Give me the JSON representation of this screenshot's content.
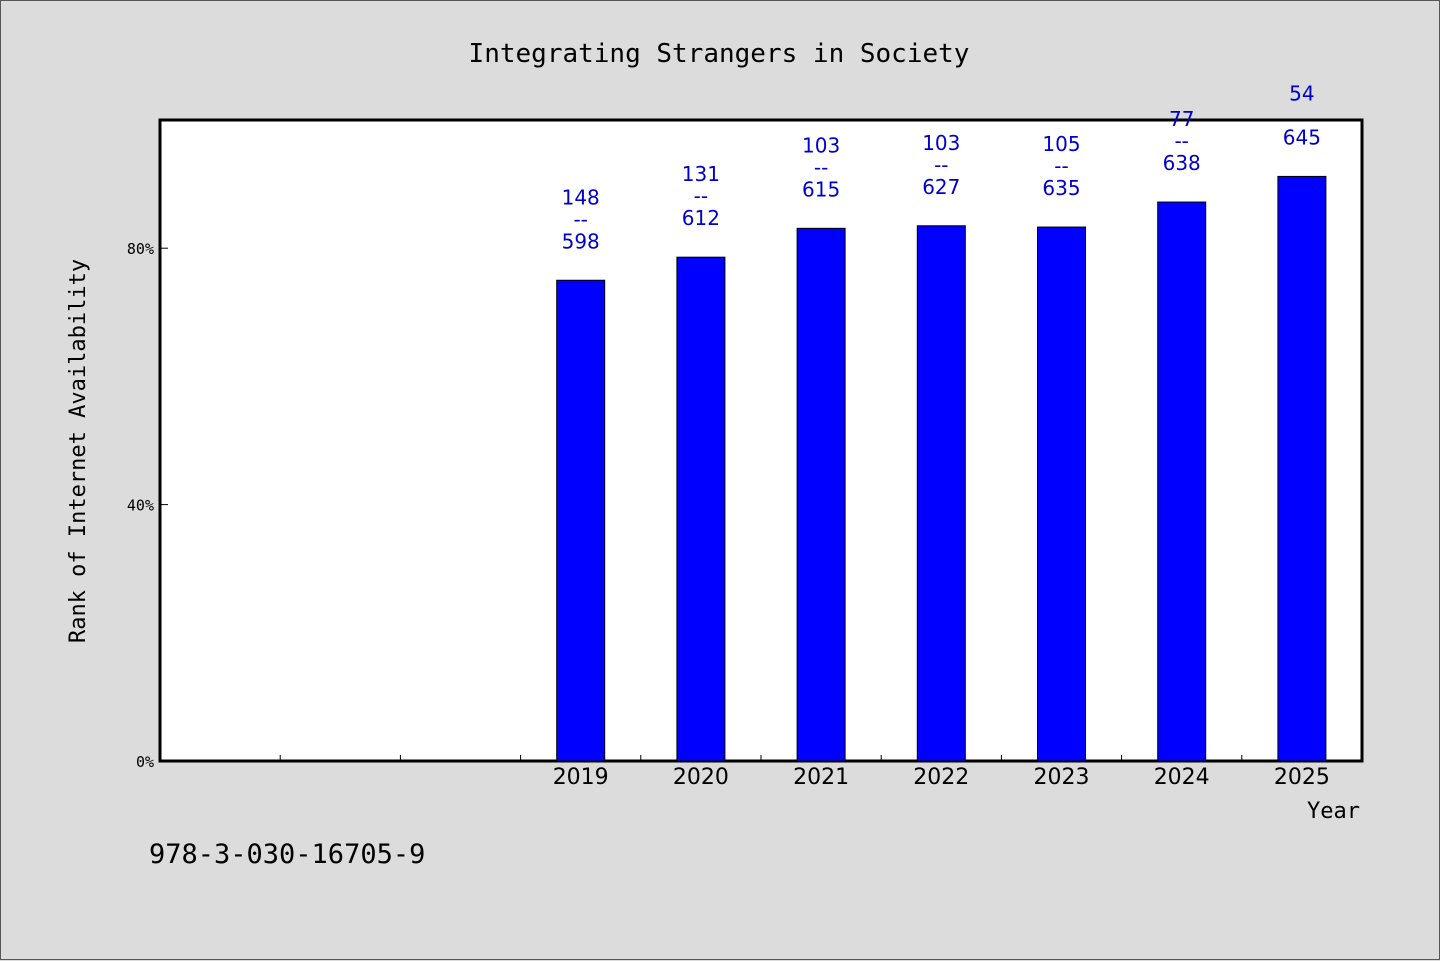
{
  "chart_data": {
    "type": "bar",
    "title": "Integrating Strangers in Society",
    "xlabel": "Year",
    "ylabel": "Rank of Internet Availability",
    "categories": [
      "",
      "",
      "",
      "2019",
      "2020",
      "2021",
      "2022",
      "2023",
      "2024",
      "2025"
    ],
    "values": [
      null,
      null,
      null,
      75,
      78.6,
      83.1,
      83.5,
      83.3,
      87.2,
      91.2
    ],
    "data_labels": [
      null,
      null,
      null,
      {
        "top": "148",
        "sep": "--",
        "bottom": "598"
      },
      {
        "top": "131",
        "sep": "--",
        "bottom": "612"
      },
      {
        "top": "103",
        "sep": "--",
        "bottom": "615"
      },
      {
        "top": "103",
        "sep": "--",
        "bottom": "627"
      },
      {
        "top": "105",
        "sep": "--",
        "bottom": "635"
      },
      {
        "top": "77",
        "sep": "--",
        "bottom": "638"
      },
      {
        "top": "54",
        "sep": "",
        "bottom": "645"
      }
    ],
    "ylim": [
      0,
      100
    ],
    "yticks": [
      0,
      40,
      80
    ],
    "ytick_labels": [
      "0%",
      "40%",
      "80%"
    ],
    "grid": false,
    "legend": "none",
    "colors": {
      "bar": "#0000ff",
      "label": "#0000cc"
    }
  },
  "footnote": "978-3-030-16705-9"
}
